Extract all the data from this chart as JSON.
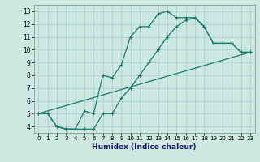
{
  "title": "",
  "xlabel": "Humidex (Indice chaleur)",
  "bg_color": "#cce8e0",
  "grid_color": "#aacccc",
  "line_color": "#1a7a6e",
  "xlim": [
    -0.5,
    23.5
  ],
  "ylim": [
    3.5,
    13.5
  ],
  "xticks": [
    0,
    1,
    2,
    3,
    4,
    5,
    6,
    7,
    8,
    9,
    10,
    11,
    12,
    13,
    14,
    15,
    16,
    17,
    18,
    19,
    20,
    21,
    22,
    23
  ],
  "yticks": [
    4,
    5,
    6,
    7,
    8,
    9,
    10,
    11,
    12,
    13
  ],
  "line1_x": [
    0,
    1,
    2,
    3,
    4,
    5,
    6,
    7,
    8,
    9,
    10,
    11,
    12,
    13,
    14,
    15,
    16,
    17,
    18,
    19,
    20,
    21,
    22,
    23
  ],
  "line1_y": [
    5.0,
    5.0,
    4.0,
    3.8,
    3.8,
    5.2,
    5.0,
    8.0,
    7.8,
    8.8,
    11.0,
    11.8,
    11.8,
    12.8,
    13.0,
    12.5,
    12.5,
    12.5,
    11.8,
    10.5,
    10.5,
    10.5,
    9.8,
    9.8
  ],
  "line2_x": [
    0,
    1,
    2,
    3,
    4,
    5,
    6,
    7,
    8,
    9,
    10,
    11,
    12,
    13,
    14,
    15,
    16,
    17,
    18,
    19,
    20,
    21,
    22,
    23
  ],
  "line2_y": [
    5.0,
    5.0,
    4.0,
    3.8,
    3.8,
    3.8,
    3.8,
    5.0,
    5.0,
    6.2,
    7.0,
    8.0,
    9.0,
    10.0,
    11.0,
    11.8,
    12.3,
    12.5,
    11.8,
    10.5,
    10.5,
    10.5,
    9.8,
    9.8
  ],
  "line3_x": [
    0,
    23
  ],
  "line3_y": [
    5.0,
    9.8
  ],
  "marker": "+",
  "markersize": 3,
  "linewidth": 0.9
}
